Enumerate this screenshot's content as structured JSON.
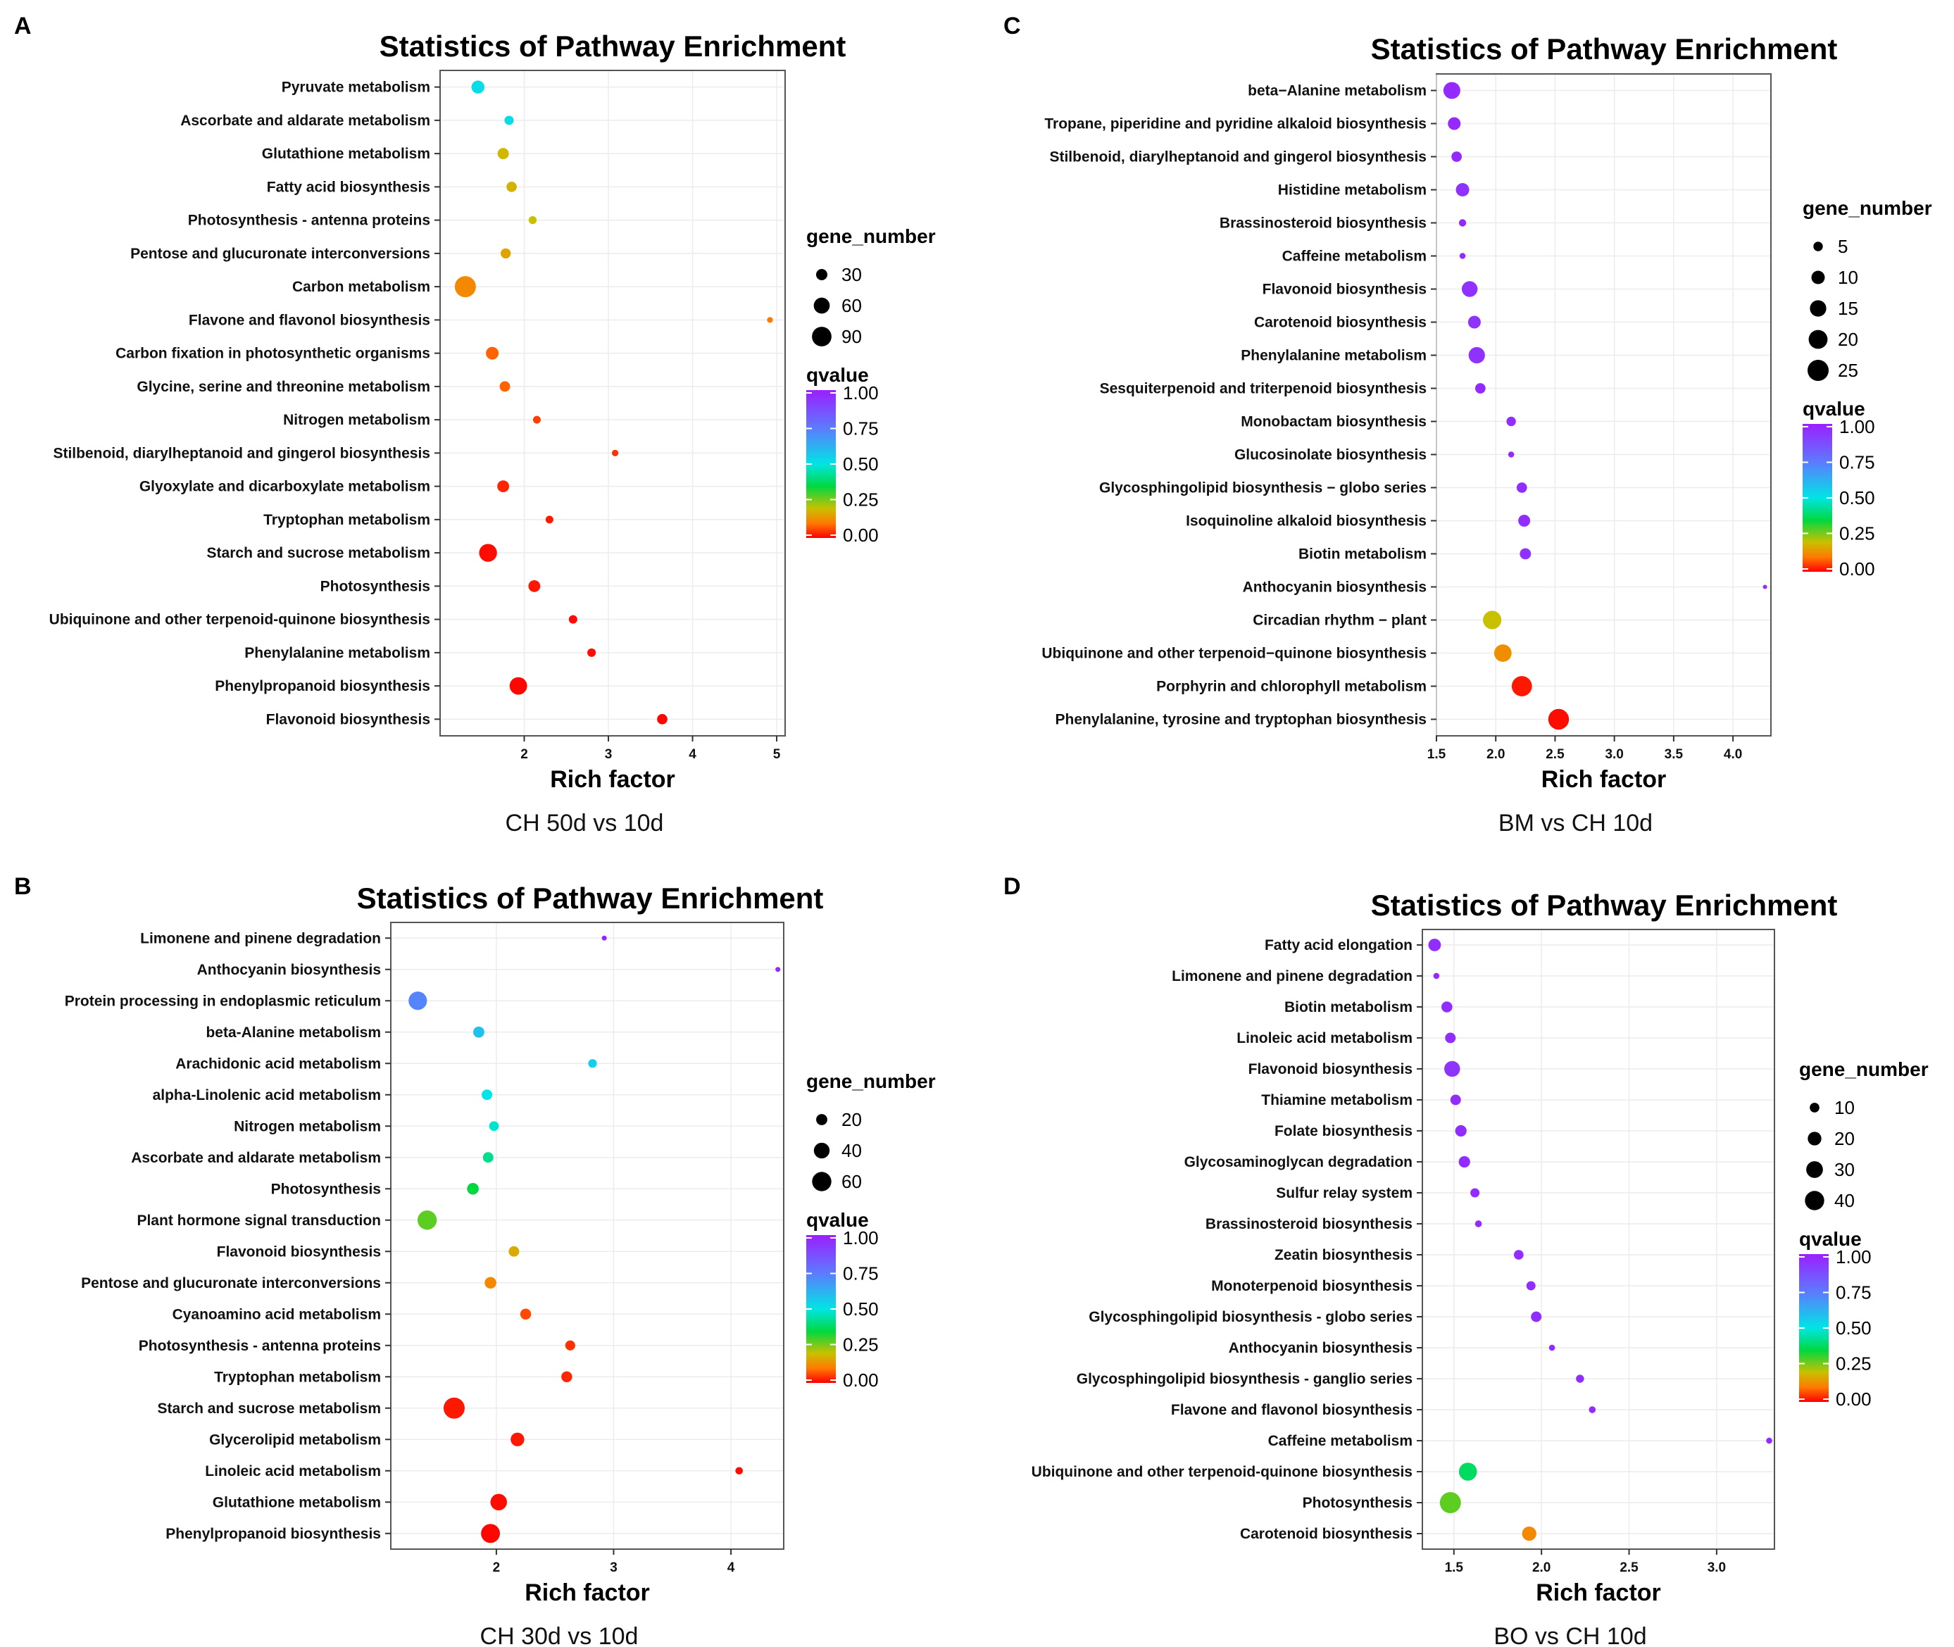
{
  "chart_data": [
    {
      "panel": "A",
      "type": "scatter",
      "title": "Statistics of Pathway Enrichment",
      "xlabel": "Rich factor",
      "caption": "CH 50d vs 10d",
      "xlim": [
        1.0,
        5.1
      ],
      "xticks": [
        2,
        3,
        4,
        5
      ],
      "size_legend": {
        "title": "gene_number",
        "values": [
          30,
          60,
          90
        ]
      },
      "color_legend": {
        "title": "qvalue",
        "ticks": [
          "1.00",
          "0.75",
          "0.50",
          "0.25",
          "0.00"
        ]
      },
      "points": [
        {
          "pathway": "Pyruvate metabolism",
          "rich_factor": 1.45,
          "gene_number": 40,
          "qvalue": 0.52
        },
        {
          "pathway": "Ascorbate and aldarate metabolism",
          "rich_factor": 1.82,
          "gene_number": 20,
          "qvalue": 0.52
        },
        {
          "pathway": "Glutathione metabolism",
          "rich_factor": 1.75,
          "gene_number": 30,
          "qvalue": 0.19
        },
        {
          "pathway": "Fatty acid biosynthesis",
          "rich_factor": 1.85,
          "gene_number": 25,
          "qvalue": 0.18
        },
        {
          "pathway": "Photosynthesis - antenna proteins",
          "rich_factor": 2.1,
          "gene_number": 15,
          "qvalue": 0.2
        },
        {
          "pathway": "Pentose and glucuronate interconversions",
          "rich_factor": 1.78,
          "gene_number": 24,
          "qvalue": 0.16
        },
        {
          "pathway": "Carbon metabolism",
          "rich_factor": 1.3,
          "gene_number": 105,
          "qvalue": 0.12
        },
        {
          "pathway": "Flavone and flavonol biosynthesis",
          "rich_factor": 4.92,
          "gene_number": 8,
          "qvalue": 0.1
        },
        {
          "pathway": "Carbon fixation in photosynthetic organisms",
          "rich_factor": 1.62,
          "gene_number": 38,
          "qvalue": 0.08
        },
        {
          "pathway": "Glycine, serine and threonine metabolism",
          "rich_factor": 1.77,
          "gene_number": 26,
          "qvalue": 0.08
        },
        {
          "pathway": "Nitrogen metabolism",
          "rich_factor": 2.15,
          "gene_number": 14,
          "qvalue": 0.05
        },
        {
          "pathway": "Stilbenoid, diarylheptanoid and gingerol biosynthesis",
          "rich_factor": 3.08,
          "gene_number": 10,
          "qvalue": 0.04
        },
        {
          "pathway": "Glyoxylate and dicarboxylate metabolism",
          "rich_factor": 1.75,
          "gene_number": 33,
          "qvalue": 0.03
        },
        {
          "pathway": "Tryptophan metabolism",
          "rich_factor": 2.3,
          "gene_number": 14,
          "qvalue": 0.02
        },
        {
          "pathway": "Starch and sucrose metabolism",
          "rich_factor": 1.57,
          "gene_number": 75,
          "qvalue": 0.01
        },
        {
          "pathway": "Photosynthesis",
          "rich_factor": 2.12,
          "gene_number": 33,
          "qvalue": 0.02
        },
        {
          "pathway": "Ubiquinone and other terpenoid-quinone biosynthesis",
          "rich_factor": 2.58,
          "gene_number": 17,
          "qvalue": 0.01
        },
        {
          "pathway": "Phenylalanine metabolism",
          "rich_factor": 2.8,
          "gene_number": 17,
          "qvalue": 0.01
        },
        {
          "pathway": "Phenylpropanoid biosynthesis",
          "rich_factor": 1.93,
          "gene_number": 72,
          "qvalue": 0.005
        },
        {
          "pathway": "Flavonoid biosynthesis",
          "rich_factor": 3.64,
          "gene_number": 25,
          "qvalue": 0.003
        }
      ]
    },
    {
      "panel": "C",
      "type": "scatter",
      "title": "Statistics of Pathway Enrichment",
      "xlabel": "Rich factor",
      "caption": "BM vs CH 10d",
      "xlim": [
        1.5,
        4.32
      ],
      "xticks": [
        1.5,
        2.0,
        2.5,
        3.0,
        3.5,
        4.0
      ],
      "xtick_labels": [
        "1.5",
        "2.0",
        "2.5",
        "3.0",
        "3.5",
        "4.0"
      ],
      "size_legend": {
        "title": "gene_number",
        "values": [
          5,
          10,
          15,
          20,
          25
        ]
      },
      "color_legend": {
        "title": "qvalue",
        "ticks": [
          "1.00",
          "0.75",
          "0.50",
          "0.25",
          "0.00"
        ]
      },
      "points": [
        {
          "pathway": "beta−Alanine metabolism",
          "rich_factor": 1.63,
          "gene_number": 16,
          "qvalue": 0.97
        },
        {
          "pathway": "Tropane, piperidine and pyridine alkaloid biosynthesis",
          "rich_factor": 1.65,
          "gene_number": 9,
          "qvalue": 0.97
        },
        {
          "pathway": "Stilbenoid, diarylheptanoid and gingerol biosynthesis",
          "rich_factor": 1.67,
          "gene_number": 6,
          "qvalue": 0.97
        },
        {
          "pathway": "Histidine metabolism",
          "rich_factor": 1.72,
          "gene_number": 10,
          "qvalue": 0.95
        },
        {
          "pathway": "Brassinosteroid biosynthesis",
          "rich_factor": 1.72,
          "gene_number": 3,
          "qvalue": 0.97
        },
        {
          "pathway": "Caffeine metabolism",
          "rich_factor": 1.72,
          "gene_number": 2,
          "qvalue": 0.97
        },
        {
          "pathway": "Flavonoid biosynthesis",
          "rich_factor": 1.78,
          "gene_number": 14,
          "qvalue": 0.95
        },
        {
          "pathway": "Carotenoid biosynthesis",
          "rich_factor": 1.82,
          "gene_number": 9,
          "qvalue": 0.95
        },
        {
          "pathway": "Phenylalanine metabolism",
          "rich_factor": 1.84,
          "gene_number": 15,
          "qvalue": 0.95
        },
        {
          "pathway": "Sesquiterpenoid and triterpenoid biosynthesis",
          "rich_factor": 1.87,
          "gene_number": 6,
          "qvalue": 0.97
        },
        {
          "pathway": "Monobactam biosynthesis",
          "rich_factor": 2.13,
          "gene_number": 5,
          "qvalue": 0.96
        },
        {
          "pathway": "Glucosinolate biosynthesis",
          "rich_factor": 2.13,
          "gene_number": 2,
          "qvalue": 0.97
        },
        {
          "pathway": "Glycosphingolipid biosynthesis − globo series",
          "rich_factor": 2.22,
          "gene_number": 6,
          "qvalue": 0.96
        },
        {
          "pathway": "Isoquinoline alkaloid biosynthesis",
          "rich_factor": 2.24,
          "gene_number": 8,
          "qvalue": 0.96
        },
        {
          "pathway": "Biotin metabolism",
          "rich_factor": 2.25,
          "gene_number": 7,
          "qvalue": 0.95
        },
        {
          "pathway": "Anthocyanin biosynthesis",
          "rich_factor": 4.27,
          "gene_number": 1,
          "qvalue": 0.97
        },
        {
          "pathway": "Circadian rhythm − plant",
          "rich_factor": 1.97,
          "gene_number": 19,
          "qvalue": 0.2
        },
        {
          "pathway": "Ubiquinone and other terpenoid−quinone biosynthesis",
          "rich_factor": 2.06,
          "gene_number": 17,
          "qvalue": 0.13
        },
        {
          "pathway": "Porphyrin and chlorophyll metabolism",
          "rich_factor": 2.22,
          "gene_number": 23,
          "qvalue": 0.02
        },
        {
          "pathway": "Phenylalanine, tyrosine and tryptophan biosynthesis",
          "rich_factor": 2.53,
          "gene_number": 24,
          "qvalue": 0.01
        }
      ]
    },
    {
      "panel": "B",
      "type": "scatter",
      "title": "Statistics of Pathway Enrichment",
      "xlabel": "Rich factor",
      "caption": "CH 30d vs 10d",
      "xlim": [
        1.1,
        4.45
      ],
      "xticks": [
        2,
        3,
        4
      ],
      "size_legend": {
        "title": "gene_number",
        "values": [
          20,
          40,
          60
        ]
      },
      "color_legend": {
        "title": "qvalue",
        "ticks": [
          "1.00",
          "0.75",
          "0.50",
          "0.25",
          "0.00"
        ]
      },
      "points": [
        {
          "pathway": "Limonene and pinene degradation",
          "rich_factor": 2.92,
          "gene_number": 4,
          "qvalue": 0.98
        },
        {
          "pathway": "Anthocyanin biosynthesis",
          "rich_factor": 4.4,
          "gene_number": 4,
          "qvalue": 0.97
        },
        {
          "pathway": "Protein processing in endoplasmic reticulum",
          "rich_factor": 1.33,
          "gene_number": 55,
          "qvalue": 0.72
        },
        {
          "pathway": "beta-Alanine metabolism",
          "rich_factor": 1.85,
          "gene_number": 20,
          "qvalue": 0.58
        },
        {
          "pathway": "Arachidonic acid metabolism",
          "rich_factor": 2.82,
          "gene_number": 12,
          "qvalue": 0.55
        },
        {
          "pathway": "alpha-Linolenic acid metabolism",
          "rich_factor": 1.92,
          "gene_number": 18,
          "qvalue": 0.5
        },
        {
          "pathway": "Nitrogen metabolism",
          "rich_factor": 1.98,
          "gene_number": 15,
          "qvalue": 0.48
        },
        {
          "pathway": "Ascorbate and aldarate metabolism",
          "rich_factor": 1.93,
          "gene_number": 18,
          "qvalue": 0.42
        },
        {
          "pathway": "Photosynthesis",
          "rich_factor": 1.8,
          "gene_number": 22,
          "qvalue": 0.35
        },
        {
          "pathway": "Plant hormone signal transduction",
          "rich_factor": 1.41,
          "gene_number": 60,
          "qvalue": 0.28
        },
        {
          "pathway": "Flavonoid biosynthesis",
          "rich_factor": 2.15,
          "gene_number": 18,
          "qvalue": 0.17
        },
        {
          "pathway": "Pentose and glucuronate interconversions",
          "rich_factor": 1.95,
          "gene_number": 22,
          "qvalue": 0.12
        },
        {
          "pathway": "Cyanoamino acid metabolism",
          "rich_factor": 2.25,
          "gene_number": 19,
          "qvalue": 0.06
        },
        {
          "pathway": "Photosynthesis - antenna proteins",
          "rich_factor": 2.63,
          "gene_number": 16,
          "qvalue": 0.04
        },
        {
          "pathway": "Tryptophan metabolism",
          "rich_factor": 2.6,
          "gene_number": 19,
          "qvalue": 0.03
        },
        {
          "pathway": "Starch and sucrose metabolism",
          "rich_factor": 1.64,
          "gene_number": 72,
          "qvalue": 0.02
        },
        {
          "pathway": "Glycerolipid metabolism",
          "rich_factor": 2.18,
          "gene_number": 30,
          "qvalue": 0.02
        },
        {
          "pathway": "Linoleic acid metabolism",
          "rich_factor": 4.07,
          "gene_number": 9,
          "qvalue": 0.01
        },
        {
          "pathway": "Glutathione metabolism",
          "rich_factor": 2.02,
          "gene_number": 44,
          "qvalue": 0.01
        },
        {
          "pathway": "Phenylpropanoid biosynthesis",
          "rich_factor": 1.95,
          "gene_number": 58,
          "qvalue": 0.005
        }
      ]
    },
    {
      "panel": "D",
      "type": "scatter",
      "title": "Statistics of Pathway Enrichment",
      "xlabel": "Rich factor",
      "caption": "BO vs CH 10d",
      "xlim": [
        1.32,
        3.33
      ],
      "xticks": [
        1.5,
        2.0,
        2.5,
        3.0
      ],
      "xtick_labels": [
        "1.5",
        "2.0",
        "2.5",
        "3.0"
      ],
      "size_legend": {
        "title": "gene_number",
        "values": [
          10,
          20,
          30,
          40
        ]
      },
      "color_legend": {
        "title": "qvalue",
        "ticks": [
          "1.00",
          "0.75",
          "0.50",
          "0.25",
          "0.00"
        ]
      },
      "points": [
        {
          "pathway": "Fatty acid elongation",
          "rich_factor": 1.39,
          "gene_number": 17,
          "qvalue": 0.96
        },
        {
          "pathway": "Limonene and pinene degradation",
          "rich_factor": 1.4,
          "gene_number": 4,
          "qvalue": 0.97
        },
        {
          "pathway": "Biotin metabolism",
          "rich_factor": 1.46,
          "gene_number": 13,
          "qvalue": 0.96
        },
        {
          "pathway": "Linoleic acid metabolism",
          "rich_factor": 1.48,
          "gene_number": 12,
          "qvalue": 0.96
        },
        {
          "pathway": "Flavonoid biosynthesis",
          "rich_factor": 1.49,
          "gene_number": 27,
          "qvalue": 0.94
        },
        {
          "pathway": "Thiamine metabolism",
          "rich_factor": 1.51,
          "gene_number": 12,
          "qvalue": 0.96
        },
        {
          "pathway": "Folate biosynthesis",
          "rich_factor": 1.54,
          "gene_number": 14,
          "qvalue": 0.96
        },
        {
          "pathway": "Glycosaminoglycan degradation",
          "rich_factor": 1.56,
          "gene_number": 14,
          "qvalue": 0.96
        },
        {
          "pathway": "Sulfur relay system",
          "rich_factor": 1.62,
          "gene_number": 9,
          "qvalue": 0.96
        },
        {
          "pathway": "Brassinosteroid biosynthesis",
          "rich_factor": 1.64,
          "gene_number": 5,
          "qvalue": 0.97
        },
        {
          "pathway": "Zeatin biosynthesis",
          "rich_factor": 1.87,
          "gene_number": 10,
          "qvalue": 0.96
        },
        {
          "pathway": "Monoterpenoid biosynthesis",
          "rich_factor": 1.94,
          "gene_number": 9,
          "qvalue": 0.96
        },
        {
          "pathway": "Glycosphingolipid biosynthesis - globo series",
          "rich_factor": 1.97,
          "gene_number": 12,
          "qvalue": 0.96
        },
        {
          "pathway": "Anthocyanin biosynthesis",
          "rich_factor": 2.06,
          "gene_number": 4,
          "qvalue": 0.97
        },
        {
          "pathway": "Glycosphingolipid biosynthesis - ganglio series",
          "rich_factor": 2.22,
          "gene_number": 7,
          "qvalue": 0.96
        },
        {
          "pathway": "Flavone and flavonol biosynthesis",
          "rich_factor": 2.29,
          "gene_number": 5,
          "qvalue": 0.97
        },
        {
          "pathway": "Caffeine metabolism",
          "rich_factor": 3.3,
          "gene_number": 4,
          "qvalue": 0.97
        },
        {
          "pathway": "Ubiquinone and other terpenoid-quinone biosynthesis",
          "rich_factor": 1.58,
          "gene_number": 35,
          "qvalue": 0.38
        },
        {
          "pathway": "Photosynthesis",
          "rich_factor": 1.48,
          "gene_number": 48,
          "qvalue": 0.28
        },
        {
          "pathway": "Carotenoid biosynthesis",
          "rich_factor": 1.93,
          "gene_number": 22,
          "qvalue": 0.12
        }
      ]
    }
  ]
}
